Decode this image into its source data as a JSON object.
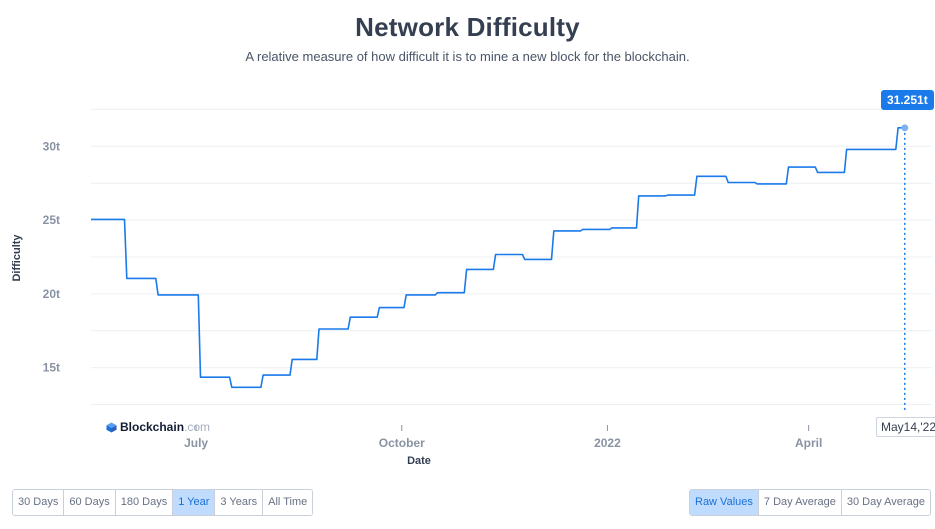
{
  "header": {
    "title": "Network Difficulty",
    "subtitle": "A relative measure of how difficult it is to mine a new block for the blockchain."
  },
  "tooltip": {
    "value": "31.251t",
    "date": "May14,'22"
  },
  "watermark": {
    "brand": "Blockchain",
    "suffix": ".com"
  },
  "colors": {
    "line": "#1a7ae9",
    "accent": "#1a7ae9",
    "active_button": "#bfdcff"
  },
  "timespan_buttons": [
    {
      "label": "30 Days",
      "active": false
    },
    {
      "label": "60 Days",
      "active": false
    },
    {
      "label": "180 Days",
      "active": false
    },
    {
      "label": "1 Year",
      "active": true
    },
    {
      "label": "3 Years",
      "active": false
    },
    {
      "label": "All Time",
      "active": false
    }
  ],
  "average_buttons": [
    {
      "label": "Raw Values",
      "active": true
    },
    {
      "label": "7 Day Average",
      "active": false
    },
    {
      "label": "30 Day Average",
      "active": false
    }
  ],
  "chart_data": {
    "type": "line",
    "title": "Network Difficulty",
    "xlabel": "Date",
    "ylabel": "Difficulty",
    "x_ticks": [
      "2021-07-01",
      "2021-10-01",
      "2022-01-01",
      "2022-04-01"
    ],
    "x_tick_labels": [
      "July",
      "October",
      "2022",
      "April"
    ],
    "y_ticks": [
      15,
      20,
      25,
      30
    ],
    "y_tick_labels": [
      "15t",
      "20t",
      "25t",
      "30t"
    ],
    "y_unit": "trillion",
    "xlim": [
      "2021-05-15",
      "2022-05-15"
    ],
    "ylim": [
      12,
      33
    ],
    "grid": true,
    "legend": "none",
    "series": [
      {
        "values": [
          [
            "2021-05-15",
            25.05
          ],
          [
            "2021-05-30",
            25.05
          ],
          [
            "2021-05-31",
            21.05
          ],
          [
            "2021-06-13",
            21.05
          ],
          [
            "2021-06-14",
            19.93
          ],
          [
            "2021-07-02",
            19.93
          ],
          [
            "2021-07-03",
            14.36
          ],
          [
            "2021-07-16",
            14.36
          ],
          [
            "2021-07-17",
            13.67
          ],
          [
            "2021-07-30",
            13.67
          ],
          [
            "2021-07-31",
            14.5
          ],
          [
            "2021-08-12",
            14.5
          ],
          [
            "2021-08-13",
            15.56
          ],
          [
            "2021-08-24",
            15.56
          ],
          [
            "2021-08-25",
            17.62
          ],
          [
            "2021-09-07",
            17.62
          ],
          [
            "2021-09-08",
            18.42
          ],
          [
            "2021-09-20",
            18.42
          ],
          [
            "2021-09-21",
            19.07
          ],
          [
            "2021-10-02",
            19.07
          ],
          [
            "2021-10-03",
            19.93
          ],
          [
            "2021-10-16",
            19.93
          ],
          [
            "2021-10-17",
            20.08
          ],
          [
            "2021-10-29",
            20.08
          ],
          [
            "2021-10-30",
            21.66
          ],
          [
            "2021-11-11",
            21.66
          ],
          [
            "2021-11-12",
            22.67
          ],
          [
            "2021-11-24",
            22.67
          ],
          [
            "2021-11-25",
            22.34
          ],
          [
            "2021-12-07",
            22.34
          ],
          [
            "2021-12-08",
            24.27
          ],
          [
            "2021-12-20",
            24.27
          ],
          [
            "2021-12-21",
            24.37
          ],
          [
            "2022-01-02",
            24.37
          ],
          [
            "2022-01-03",
            24.47
          ],
          [
            "2022-01-14",
            24.47
          ],
          [
            "2022-01-15",
            26.64
          ],
          [
            "2022-01-27",
            26.64
          ],
          [
            "2022-01-28",
            26.69
          ],
          [
            "2022-02-09",
            26.69
          ],
          [
            "2022-02-10",
            27.97
          ],
          [
            "2022-02-23",
            27.97
          ],
          [
            "2022-02-24",
            27.55
          ],
          [
            "2022-03-08",
            27.55
          ],
          [
            "2022-03-09",
            27.45
          ],
          [
            "2022-03-22",
            27.45
          ],
          [
            "2022-03-23",
            28.59
          ],
          [
            "2022-04-04",
            28.59
          ],
          [
            "2022-04-05",
            28.23
          ],
          [
            "2022-04-17",
            28.23
          ],
          [
            "2022-04-18",
            29.79
          ],
          [
            "2022-04-30",
            29.79
          ],
          [
            "2022-05-01",
            29.79
          ],
          [
            "2022-05-10",
            29.79
          ],
          [
            "2022-05-11",
            31.25
          ],
          [
            "2022-05-14",
            31.25
          ]
        ]
      }
    ]
  }
}
